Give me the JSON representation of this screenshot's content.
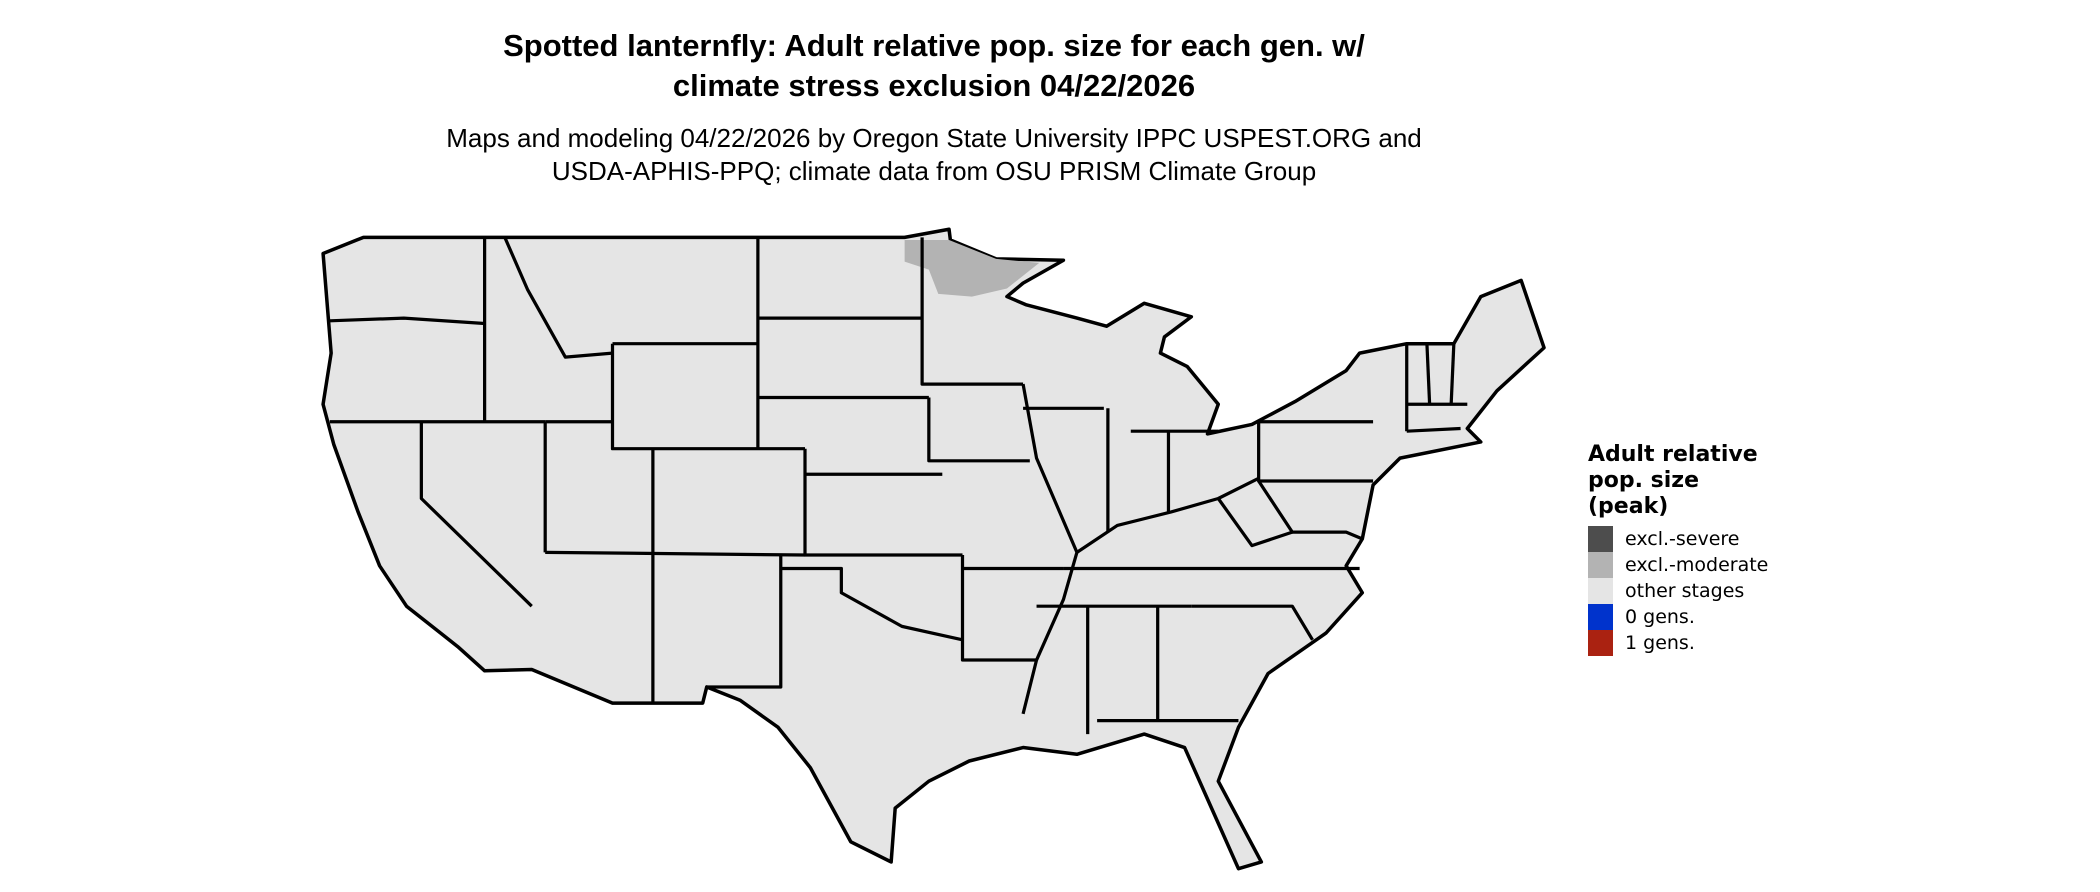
{
  "title": {
    "line1": "Spotted lanternfly: Adult relative pop. size for each gen. w/",
    "line2": "climate stress exclusion 04/22/2026"
  },
  "subtitle": {
    "line1": "Maps and modeling 04/22/2026 by Oregon State University IPPC USPEST.ORG and",
    "line2": "USDA-APHIS-PPQ; climate data from OSU PRISM Climate Group"
  },
  "map": {
    "region": "Contiguous United States",
    "base_fill": "#e5e5e5",
    "border_color": "#000000",
    "highlighted_areas": [
      {
        "area": "northeastern Minnesota",
        "category": "excl.-moderate",
        "color": "#b3b3b3"
      }
    ]
  },
  "legend": {
    "title": "Adult relative pop. size (peak)",
    "title_lines": [
      "Adult relative",
      "pop. size",
      "(peak)"
    ],
    "items": [
      {
        "label": "excl.-severe",
        "color": "#4d4d4d"
      },
      {
        "label": "excl.-moderate",
        "color": "#b3b3b3"
      },
      {
        "label": "other stages",
        "color": "#e5e5e5"
      },
      {
        "label": "0 gens.",
        "color": "#0033cc"
      },
      {
        "label": "1 gens.",
        "color": "#aa2211"
      }
    ]
  }
}
